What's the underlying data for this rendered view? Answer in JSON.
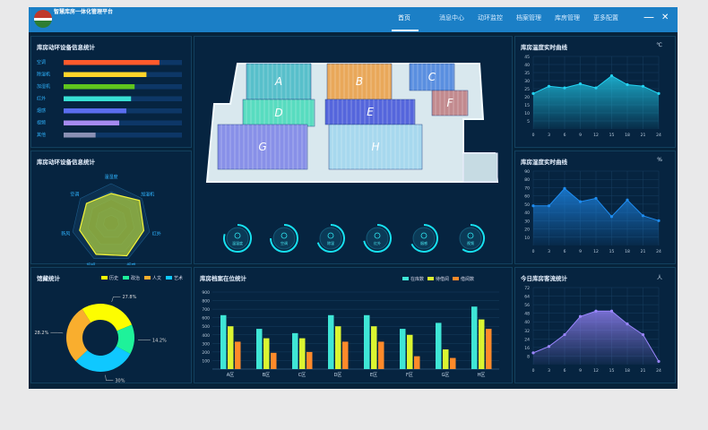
{
  "header": {
    "title": "智慧库房一体化管理平台",
    "nav": [
      "首页",
      "消息中心",
      "动环监控",
      "档案管理",
      "库房管理",
      "更多配置"
    ],
    "active": 0,
    "minimize": "—",
    "close": "✕"
  },
  "device_bars": {
    "title": "库房动环设备信息统计",
    "items": [
      {
        "label": "空调",
        "value": 0.81,
        "color": "#ff5a2c"
      },
      {
        "label": "除湿机",
        "value": 0.7,
        "color": "#ffd42a"
      },
      {
        "label": "加湿机",
        "value": 0.6,
        "color": "#5fc51e"
      },
      {
        "label": "红外",
        "value": 0.57,
        "color": "#38e0d4"
      },
      {
        "label": "烟感",
        "value": 0.53,
        "color": "#5a6ef0"
      },
      {
        "label": "视频",
        "value": 0.47,
        "color": "#a58af0"
      },
      {
        "label": "其他",
        "value": 0.27,
        "color": "#8a90b4"
      }
    ]
  },
  "device_radar": {
    "title": "库房动环设备信息统计",
    "labels": [
      "温湿度",
      "加湿机",
      "红外",
      "烟感",
      "视频",
      "新风",
      "空调"
    ],
    "values": [
      0.75,
      0.92,
      0.85,
      0.92,
      0.88,
      0.82,
      0.8
    ]
  },
  "map": {
    "zones": [
      "A",
      "B",
      "C",
      "D",
      "E",
      "F",
      "G",
      "H"
    ]
  },
  "device_icons": [
    {
      "label": "温湿度",
      "icon": "thermometer-icon",
      "progress": 0.8
    },
    {
      "label": "空调",
      "icon": "snowflake-icon",
      "progress": 0.75
    },
    {
      "label": "除湿",
      "icon": "dehumidifier-icon",
      "progress": 0.7
    },
    {
      "label": "红外",
      "icon": "infrared-icon",
      "progress": 0.72
    },
    {
      "label": "烟感",
      "icon": "smoke-icon",
      "progress": 0.68
    },
    {
      "label": "视频",
      "icon": "camera-icon",
      "progress": 0.6
    }
  ],
  "collection_pie": {
    "title": "馆藏统计",
    "legend": [
      {
        "label": "历史",
        "color": "#fdfd00"
      },
      {
        "label": "政治",
        "color": "#1ef29a"
      },
      {
        "label": "人文",
        "color": "#f9ae2e"
      },
      {
        "label": "艺术",
        "color": "#0fc8ff"
      }
    ],
    "chart_data": {
      "type": "pie",
      "slices": [
        {
          "label": "历史",
          "value": 27.8,
          "text": "27.8%"
        },
        {
          "label": "政治",
          "value": 14.2,
          "text": "14.2%"
        },
        {
          "label": "艺术",
          "value": 30,
          "text": "30%"
        },
        {
          "label": "人文",
          "value": 28.2,
          "text": "28.2%"
        }
      ]
    }
  },
  "archive_bars": {
    "title": "库房档案在位统计",
    "chart_data": {
      "type": "bar",
      "categories": [
        "A区",
        "B区",
        "C区",
        "D区",
        "E区",
        "F区",
        "G区",
        "H区"
      ],
      "ylim": [
        0,
        900
      ],
      "yticks": [
        100,
        200,
        300,
        400,
        500,
        600,
        700,
        800,
        900
      ],
      "series": [
        {
          "name": "在库数",
          "color": "#3fe6d6",
          "values": [
            630,
            470,
            420,
            630,
            630,
            470,
            540,
            730
          ]
        },
        {
          "name": "待借阅",
          "color": "#dbf531",
          "values": [
            500,
            360,
            360,
            500,
            500,
            400,
            230,
            580
          ]
        },
        {
          "name": "借阅数",
          "color": "#ff8a2a",
          "values": [
            320,
            190,
            200,
            320,
            320,
            150,
            130,
            470
          ]
        }
      ]
    }
  },
  "temp_line": {
    "title": "库房温度实时曲线",
    "unit": "℃",
    "color": "#22d3f2",
    "chart_data": {
      "type": "area",
      "x": [
        0,
        3,
        6,
        9,
        12,
        15,
        18,
        21,
        24
      ],
      "values": [
        22,
        26.5,
        25.5,
        28,
        25.5,
        33,
        27.5,
        26.5,
        22
      ],
      "ylim": [
        0,
        45
      ],
      "yticks": [
        5,
        10,
        15,
        20,
        25,
        30,
        35,
        40,
        45
      ]
    }
  },
  "humid_line": {
    "title": "库房湿度实时曲线",
    "unit": "%",
    "color": "#1e8cf0",
    "chart_data": {
      "type": "area",
      "x": [
        0,
        3,
        6,
        9,
        12,
        15,
        18,
        21,
        24
      ],
      "values": [
        48,
        48,
        69,
        53,
        57,
        35,
        55,
        36,
        30
      ],
      "ylim": [
        0,
        90
      ],
      "yticks": [
        10,
        20,
        30,
        40,
        50,
        60,
        70,
        80,
        90
      ]
    }
  },
  "visitor_line": {
    "title": "今日库房客流统计",
    "unit": "人",
    "color": "#9b86ff",
    "chart_data": {
      "type": "area",
      "x": [
        0,
        3,
        6,
        9,
        12,
        15,
        18,
        21,
        24
      ],
      "values": [
        11,
        17,
        28,
        45,
        50,
        50,
        38,
        28,
        3
      ],
      "ylim": [
        0,
        72
      ],
      "yticks": [
        8,
        16,
        24,
        32,
        40,
        48,
        56,
        64,
        72
      ]
    }
  }
}
